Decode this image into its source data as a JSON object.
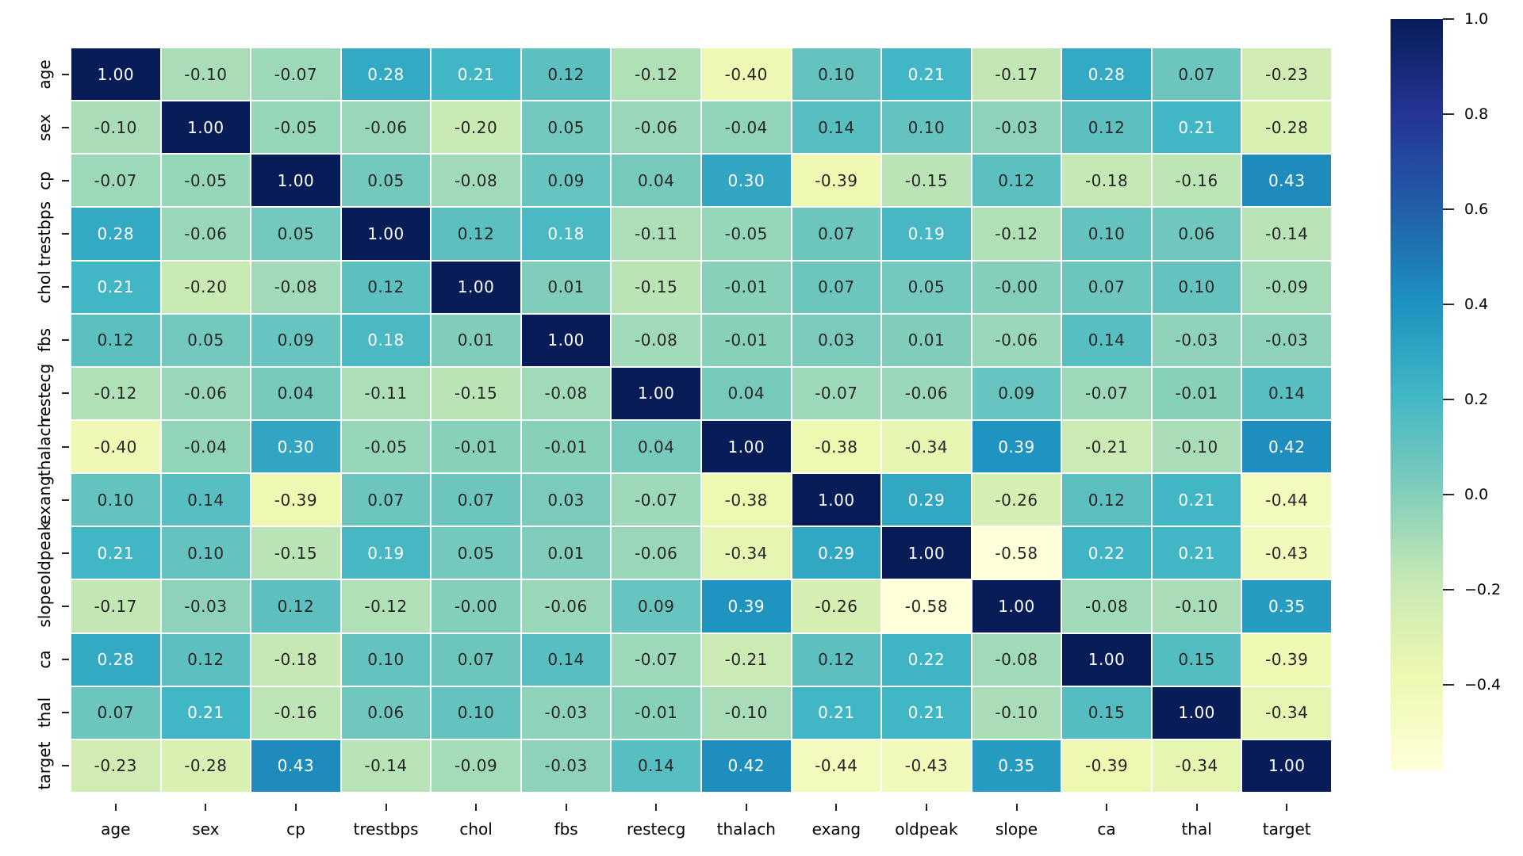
{
  "chart_data": {
    "type": "heatmap",
    "title": "",
    "xlabel": "",
    "ylabel": "",
    "labels": [
      "age",
      "sex",
      "cp",
      "trestbps",
      "chol",
      "fbs",
      "restecg",
      "thalach",
      "exang",
      "oldpeak",
      "slope",
      "ca",
      "thal",
      "target"
    ],
    "matrix": [
      [
        "1.00",
        "-0.10",
        "-0.07",
        "0.28",
        "0.21",
        "0.12",
        "-0.12",
        "-0.40",
        "0.10",
        "0.21",
        "-0.17",
        "0.28",
        "0.07",
        "-0.23"
      ],
      [
        "-0.10",
        "1.00",
        "-0.05",
        "-0.06",
        "-0.20",
        "0.05",
        "-0.06",
        "-0.04",
        "0.14",
        "0.10",
        "-0.03",
        "0.12",
        "0.21",
        "-0.28"
      ],
      [
        "-0.07",
        "-0.05",
        "1.00",
        "0.05",
        "-0.08",
        "0.09",
        "0.04",
        "0.30",
        "-0.39",
        "-0.15",
        "0.12",
        "-0.18",
        "-0.16",
        "0.43"
      ],
      [
        "0.28",
        "-0.06",
        "0.05",
        "1.00",
        "0.12",
        "0.18",
        "-0.11",
        "-0.05",
        "0.07",
        "0.19",
        "-0.12",
        "0.10",
        "0.06",
        "-0.14"
      ],
      [
        "0.21",
        "-0.20",
        "-0.08",
        "0.12",
        "1.00",
        "0.01",
        "-0.15",
        "-0.01",
        "0.07",
        "0.05",
        "-0.00",
        "0.07",
        "0.10",
        "-0.09"
      ],
      [
        "0.12",
        "0.05",
        "0.09",
        "0.18",
        "0.01",
        "1.00",
        "-0.08",
        "-0.01",
        "0.03",
        "0.01",
        "-0.06",
        "0.14",
        "-0.03",
        "-0.03"
      ],
      [
        "-0.12",
        "-0.06",
        "0.04",
        "-0.11",
        "-0.15",
        "-0.08",
        "1.00",
        "0.04",
        "-0.07",
        "-0.06",
        "0.09",
        "-0.07",
        "-0.01",
        "0.14"
      ],
      [
        "-0.40",
        "-0.04",
        "0.30",
        "-0.05",
        "-0.01",
        "-0.01",
        "0.04",
        "1.00",
        "-0.38",
        "-0.34",
        "0.39",
        "-0.21",
        "-0.10",
        "0.42"
      ],
      [
        "0.10",
        "0.14",
        "-0.39",
        "0.07",
        "0.07",
        "0.03",
        "-0.07",
        "-0.38",
        "1.00",
        "0.29",
        "-0.26",
        "0.12",
        "0.21",
        "-0.44"
      ],
      [
        "0.21",
        "0.10",
        "-0.15",
        "0.19",
        "0.05",
        "0.01",
        "-0.06",
        "-0.34",
        "0.29",
        "1.00",
        "-0.58",
        "0.22",
        "0.21",
        "-0.43"
      ],
      [
        "-0.17",
        "-0.03",
        "0.12",
        "-0.12",
        "-0.00",
        "-0.06",
        "0.09",
        "0.39",
        "-0.26",
        "-0.58",
        "1.00",
        "-0.08",
        "-0.10",
        "0.35"
      ],
      [
        "0.28",
        "0.12",
        "-0.18",
        "0.10",
        "0.07",
        "0.14",
        "-0.07",
        "-0.21",
        "0.12",
        "0.22",
        "-0.08",
        "1.00",
        "0.15",
        "-0.39"
      ],
      [
        "0.07",
        "0.21",
        "-0.16",
        "0.06",
        "0.10",
        "-0.03",
        "-0.01",
        "-0.10",
        "0.21",
        "0.21",
        "-0.10",
        "0.15",
        "1.00",
        "-0.34"
      ],
      [
        "-0.23",
        "-0.28",
        "0.43",
        "-0.14",
        "-0.09",
        "-0.03",
        "0.14",
        "0.42",
        "-0.44",
        "-0.43",
        "0.35",
        "-0.39",
        "-0.34",
        "1.00"
      ]
    ],
    "colormap": "YlGnBu",
    "vmin": -0.58,
    "vmax": 1.0,
    "grid": false,
    "legend_position": "right-colorbar",
    "colorbar": {
      "ticks": [
        {
          "label": "1.0",
          "value": 1.0
        },
        {
          "label": "0.8",
          "value": 0.8
        },
        {
          "label": "0.6",
          "value": 0.6
        },
        {
          "label": "0.4",
          "value": 0.4
        },
        {
          "label": "0.2",
          "value": 0.2
        },
        {
          "label": "0.0",
          "value": 0.0
        },
        {
          "label": "−0.2",
          "value": -0.2
        },
        {
          "label": "−0.4",
          "value": -0.4
        }
      ]
    },
    "colors": {
      "cmap_stops_low_to_high": [
        "#ffffd9",
        "#edf8b1",
        "#c7e9b4",
        "#7fcdbb",
        "#41b6c4",
        "#1d91c0",
        "#225ea8",
        "#253494",
        "#081d58"
      ],
      "annotation_dark": "#262626",
      "annotation_light": "#ffffff",
      "tick_color": "#262626",
      "background": "#ffffff",
      "gridline": "#ffffff"
    }
  }
}
